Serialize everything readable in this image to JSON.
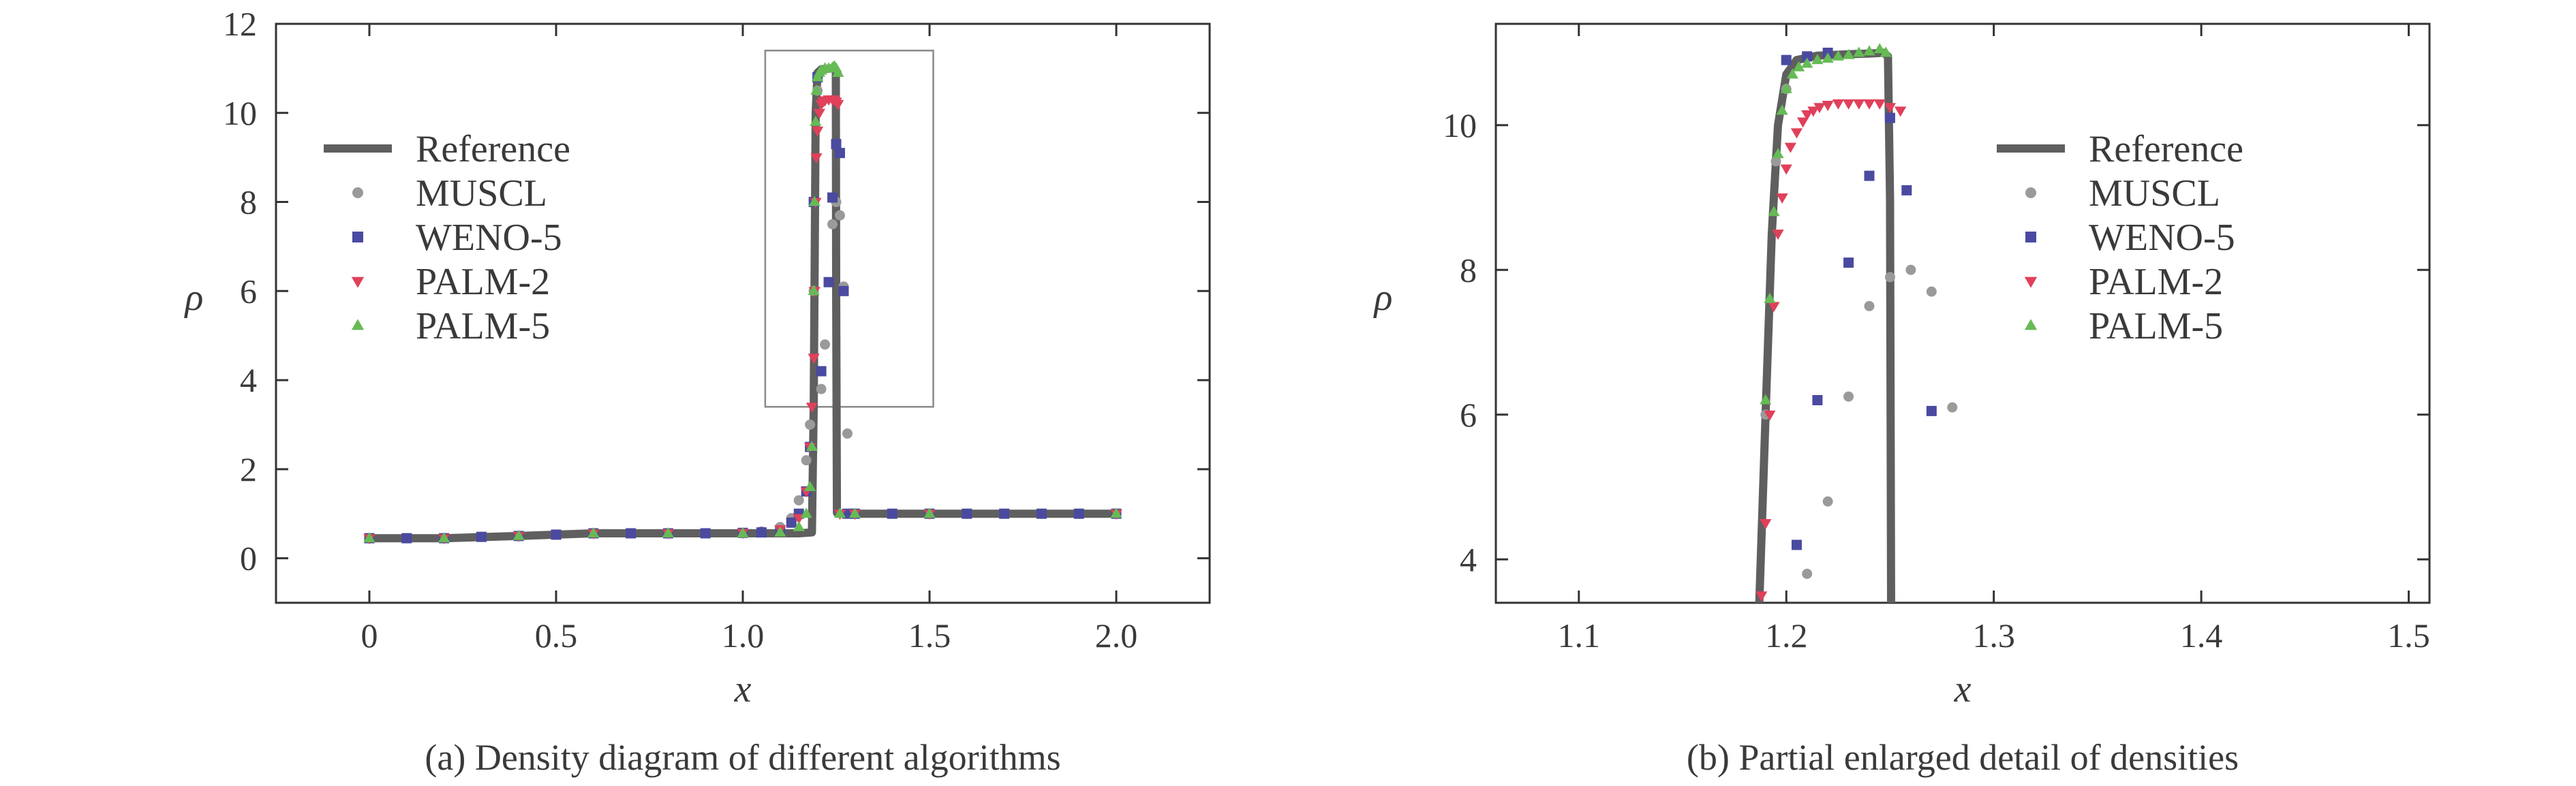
{
  "colors": {
    "reference": "#5f5f5f",
    "muscl": "#9a9a9a",
    "weno5": "#4a4aa0",
    "palm2": "#e0405a",
    "palm5": "#66bb55",
    "axis": "#333333",
    "zoom_box": "#8a8a8a"
  },
  "chart_data": [
    {
      "type": "line",
      "caption": "(a) Density diagram of different algorithms",
      "xlabel": "x",
      "ylabel": "ρ",
      "xlim": [
        -0.25,
        2.25
      ],
      "ylim": [
        -1,
        12
      ],
      "xticks": [
        0,
        0.5,
        1.0,
        1.5,
        2.0
      ],
      "xtick_labels": [
        "0",
        "0.5",
        "1.0",
        "1.5",
        "2.0"
      ],
      "yticks": [
        0,
        2,
        4,
        6,
        8,
        10,
        12
      ],
      "ytick_labels": [
        "0",
        "2",
        "4",
        "6",
        "8",
        "10",
        "12"
      ],
      "legend_position": "center-left",
      "zoom_box": {
        "x": [
          1.06,
          1.51
        ],
        "y": [
          3.4,
          11.4
        ]
      },
      "series": [
        {
          "name": "Reference",
          "kind": "line",
          "x": [
            0,
            0.2,
            0.4,
            0.6,
            0.8,
            1.0,
            1.1,
            1.15,
            1.185,
            1.19,
            1.195,
            1.2,
            1.21,
            1.24,
            1.249,
            1.25,
            1.252,
            1.26,
            1.5,
            2.0
          ],
          "y": [
            0.45,
            0.45,
            0.5,
            0.56,
            0.56,
            0.56,
            0.56,
            0.56,
            0.58,
            3.5,
            10.0,
            10.9,
            10.98,
            11.0,
            10.95,
            6.0,
            1.02,
            1.0,
            1.0,
            1.0
          ]
        },
        {
          "name": "MUSCL",
          "kind": "circle",
          "x": [
            0.0,
            0.1,
            0.2,
            0.3,
            0.4,
            0.5,
            0.6,
            0.7,
            0.8,
            0.9,
            1.0,
            1.05,
            1.1,
            1.13,
            1.15,
            1.17,
            1.18,
            1.19,
            1.2,
            1.21,
            1.22,
            1.23,
            1.24,
            1.25,
            1.26,
            1.27,
            1.28,
            1.3,
            1.4,
            1.5,
            1.6,
            1.7,
            1.8,
            1.9,
            2.0
          ],
          "y": [
            0.45,
            0.45,
            0.45,
            0.48,
            0.5,
            0.53,
            0.56,
            0.56,
            0.56,
            0.56,
            0.57,
            0.6,
            0.7,
            0.9,
            1.3,
            2.2,
            3.0,
            6.0,
            10.5,
            3.8,
            4.8,
            6.2,
            7.5,
            8.0,
            7.7,
            6.1,
            2.8,
            1.0,
            1.0,
            1.0,
            1.0,
            1.0,
            1.0,
            1.0,
            1.0
          ]
        },
        {
          "name": "WENO-5",
          "kind": "square",
          "x": [
            0.0,
            0.1,
            0.2,
            0.3,
            0.4,
            0.5,
            0.6,
            0.7,
            0.8,
            0.9,
            1.0,
            1.05,
            1.1,
            1.13,
            1.15,
            1.17,
            1.18,
            1.19,
            1.2,
            1.21,
            1.23,
            1.24,
            1.25,
            1.26,
            1.27,
            1.28,
            1.3,
            1.4,
            1.5,
            1.6,
            1.7,
            1.8,
            1.9,
            2.0
          ],
          "y": [
            0.45,
            0.45,
            0.45,
            0.48,
            0.5,
            0.53,
            0.56,
            0.56,
            0.56,
            0.56,
            0.57,
            0.58,
            0.62,
            0.8,
            1.0,
            1.5,
            2.5,
            8.0,
            10.8,
            4.2,
            6.2,
            8.1,
            9.3,
            9.1,
            6.0,
            1.0,
            1.0,
            1.0,
            1.0,
            1.0,
            1.0,
            1.0,
            1.0,
            1.0
          ]
        },
        {
          "name": "PALM-2",
          "kind": "triangle-down",
          "x": [
            0.0,
            0.2,
            0.4,
            0.6,
            0.8,
            1.0,
            1.1,
            1.15,
            1.17,
            1.18,
            1.185,
            1.19,
            1.192,
            1.195,
            1.197,
            1.2,
            1.205,
            1.21,
            1.215,
            1.22,
            1.23,
            1.24,
            1.245,
            1.25,
            1.255,
            1.26,
            1.3,
            1.5,
            2.0
          ],
          "y": [
            0.45,
            0.45,
            0.5,
            0.56,
            0.56,
            0.57,
            0.65,
            0.9,
            1.5,
            2.5,
            3.4,
            4.5,
            6.0,
            8.0,
            9.0,
            9.6,
            10.0,
            10.2,
            10.25,
            10.28,
            10.3,
            10.3,
            10.3,
            10.25,
            10.2,
            1.0,
            1.0,
            1.0,
            1.0
          ]
        },
        {
          "name": "PALM-5",
          "kind": "triangle-up",
          "x": [
            0.0,
            0.2,
            0.4,
            0.6,
            0.8,
            1.0,
            1.1,
            1.15,
            1.17,
            1.18,
            1.185,
            1.19,
            1.192,
            1.195,
            1.197,
            1.2,
            1.205,
            1.21,
            1.22,
            1.23,
            1.24,
            1.245,
            1.25,
            1.255,
            1.26,
            1.3,
            1.5,
            2.0
          ],
          "y": [
            0.45,
            0.45,
            0.5,
            0.56,
            0.56,
            0.56,
            0.58,
            0.7,
            1.0,
            1.6,
            2.5,
            6.0,
            8.0,
            9.8,
            10.5,
            10.8,
            10.9,
            10.95,
            11.0,
            11.0,
            11.02,
            11.05,
            11.0,
            10.9,
            1.0,
            1.0,
            1.0,
            1.0
          ]
        }
      ]
    },
    {
      "type": "line",
      "caption": "(b) Partial enlarged detail of densities",
      "xlabel": "x",
      "ylabel": "ρ",
      "xlim": [
        1.06,
        1.51
      ],
      "ylim": [
        3.4,
        11.4
      ],
      "xticks": [
        1.1,
        1.2,
        1.3,
        1.4,
        1.5
      ],
      "xtick_labels": [
        "1.1",
        "1.2",
        "1.3",
        "1.4",
        "1.5"
      ],
      "yticks": [
        4,
        6,
        8,
        10
      ],
      "ytick_labels": [
        "4",
        "6",
        "8",
        "10"
      ],
      "legend_position": "center-right",
      "series": [
        {
          "name": "Reference",
          "kind": "line",
          "x": [
            1.187,
            1.19,
            1.193,
            1.196,
            1.2,
            1.205,
            1.215,
            1.23,
            1.24,
            1.247,
            1.249,
            1.25,
            1.2505
          ],
          "y": [
            3.4,
            6.0,
            8.5,
            10.0,
            10.7,
            10.9,
            10.96,
            10.98,
            10.99,
            11.0,
            10.95,
            9.0,
            3.4
          ]
        },
        {
          "name": "MUSCL",
          "kind": "circle",
          "x": [
            1.19,
            1.195,
            1.2,
            1.21,
            1.22,
            1.23,
            1.24,
            1.25,
            1.26,
            1.27,
            1.28
          ],
          "y": [
            6.0,
            9.5,
            10.5,
            3.8,
            4.8,
            6.25,
            7.5,
            7.9,
            8.0,
            7.7,
            6.1
          ]
        },
        {
          "name": "WENO-5",
          "kind": "square",
          "x": [
            1.2,
            1.205,
            1.21,
            1.215,
            1.22,
            1.23,
            1.24,
            1.25,
            1.258,
            1.27
          ],
          "y": [
            10.9,
            4.2,
            10.95,
            6.2,
            11.0,
            8.1,
            9.3,
            10.1,
            9.1,
            6.05
          ]
        },
        {
          "name": "PALM-2",
          "kind": "triangle-down",
          "x": [
            1.188,
            1.19,
            1.192,
            1.194,
            1.196,
            1.198,
            1.2,
            1.202,
            1.205,
            1.208,
            1.21,
            1.213,
            1.216,
            1.22,
            1.225,
            1.23,
            1.235,
            1.24,
            1.245,
            1.25,
            1.255
          ],
          "y": [
            3.5,
            4.5,
            6.0,
            7.5,
            8.5,
            9.0,
            9.4,
            9.7,
            9.9,
            10.05,
            10.15,
            10.2,
            10.25,
            10.28,
            10.3,
            10.3,
            10.3,
            10.3,
            10.3,
            10.25,
            10.2
          ]
        },
        {
          "name": "PALM-5",
          "kind": "triangle-up",
          "x": [
            1.19,
            1.192,
            1.194,
            1.196,
            1.198,
            1.2,
            1.203,
            1.206,
            1.21,
            1.215,
            1.22,
            1.225,
            1.23,
            1.235,
            1.24,
            1.245,
            1.248
          ],
          "y": [
            6.2,
            7.6,
            8.8,
            9.6,
            10.2,
            10.5,
            10.7,
            10.8,
            10.85,
            10.9,
            10.92,
            10.95,
            10.97,
            11.0,
            11.02,
            11.05,
            11.0
          ]
        }
      ]
    }
  ]
}
